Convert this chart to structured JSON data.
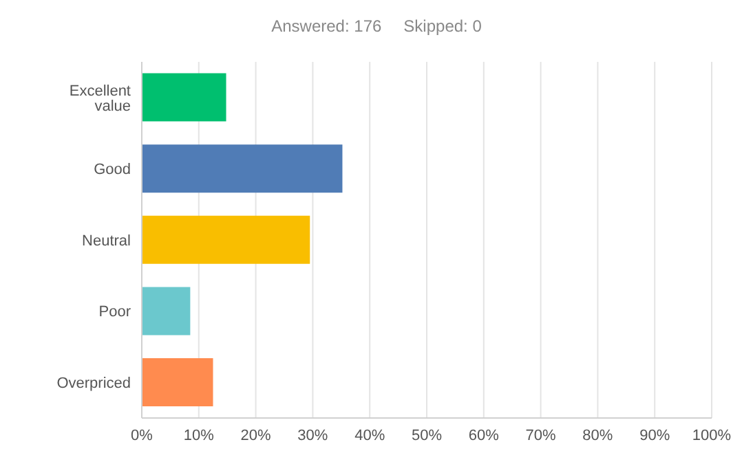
{
  "chart_data": {
    "type": "bar",
    "orientation": "horizontal",
    "title": "Answered: 176",
    "subtitle": "Skipped: 0",
    "categories": [
      "Excellent value",
      "Good",
      "Neutral",
      "Poor",
      "Overpriced"
    ],
    "values": [
      14.8,
      35.2,
      29.5,
      8.5,
      12.5
    ],
    "colors": [
      "#00bf6f",
      "#507cb6",
      "#f9be00",
      "#6bc8cd",
      "#ff8b4f"
    ],
    "xlim": [
      0,
      100
    ],
    "xticks": [
      {
        "value": 0,
        "label": "0%"
      },
      {
        "value": 10,
        "label": "10%"
      },
      {
        "value": 20,
        "label": "20%"
      },
      {
        "value": 30,
        "label": "30%"
      },
      {
        "value": 40,
        "label": "40%"
      },
      {
        "value": 50,
        "label": "50%"
      },
      {
        "value": 60,
        "label": "60%"
      },
      {
        "value": 70,
        "label": "70%"
      },
      {
        "value": 80,
        "label": "80%"
      },
      {
        "value": 90,
        "label": "90%"
      },
      {
        "value": 100,
        "label": "100%"
      }
    ],
    "grid": "x"
  }
}
